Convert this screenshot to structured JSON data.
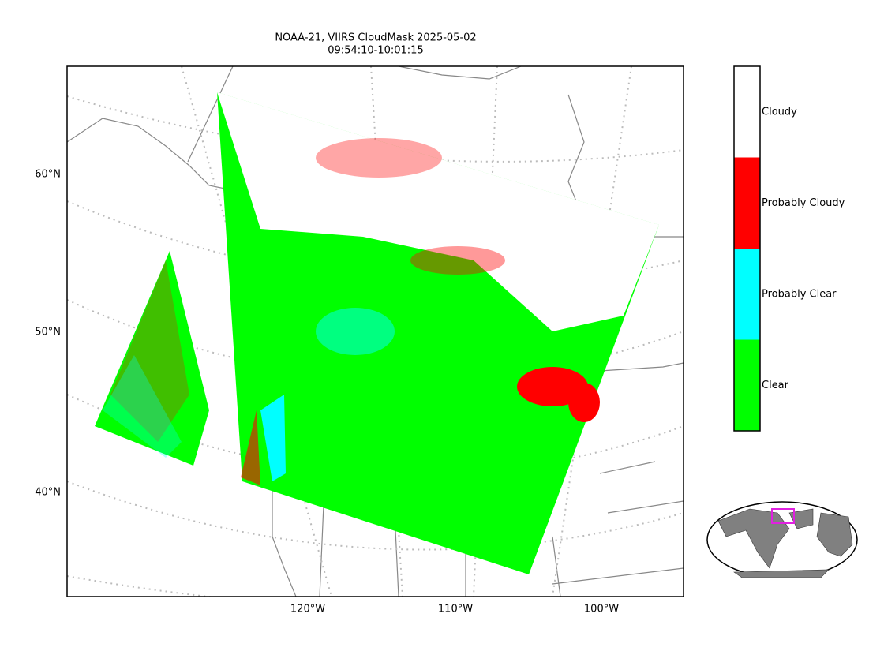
{
  "title": [
    "NOAA-21, VIIRS CloudMask 2025-05-02",
    "09:54:10-10:01:15"
  ],
  "map": {
    "lat_labels": [
      "60°N",
      "50°N",
      "40°N"
    ],
    "lon_labels": [
      "120°W",
      "110°W",
      "100°W"
    ]
  },
  "colorbar": {
    "categories": [
      {
        "label": "Clear",
        "color": "#00ff00"
      },
      {
        "label": "Probably Clear",
        "color": "#00ffff"
      },
      {
        "label": "Probably Cloudy",
        "color": "#ff0000"
      },
      {
        "label": "Cloudy",
        "color": "#ffffff"
      }
    ]
  }
}
